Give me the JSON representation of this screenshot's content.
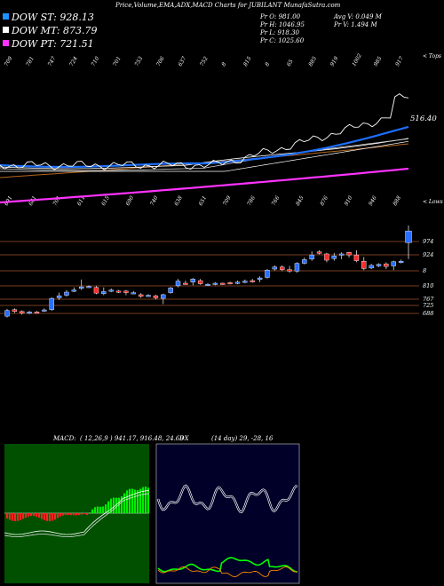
{
  "header": {
    "title": "Price,Volume,EMA,ADX,MACD Charts for JUBILANT MunafaSutra.com",
    "dow_st": "DOW ST: 928.13",
    "dow_mt": "DOW MT: 873.79",
    "dow_pt": "DOW PT: 721.51",
    "pr_o": "Pr  O: 981.00",
    "pr_h": "Pr  H: 1046.95",
    "pr_l": "Pr  L: 918.30",
    "pr_c": "Pr  C: 1025.60",
    "avg_v": "Avg V: 0.049 M",
    "pr_v": "Pr  V: 1.494  M",
    "top_label": "< Tops",
    "low_label": "< Lows",
    "colors": {
      "st": "#1e90ff",
      "mt": "#ffffff",
      "pt": "#ff33ff"
    }
  },
  "ema_panel": {
    "last_value_label": "516.40",
    "top_ticks": [
      "709",
      "781",
      "747",
      "724",
      "710",
      "701",
      "753",
      "706",
      "637",
      "752",
      "8",
      "815",
      "8",
      "65",
      "885",
      "919",
      "1002",
      "985",
      "917"
    ],
    "low_ticks": [
      "691",
      "681",
      "701",
      "611",
      "615",
      "690",
      "740",
      "638",
      "651",
      "709",
      "786",
      "766",
      "845",
      "876",
      "910",
      "946",
      "888"
    ]
  },
  "price_panel": {
    "price_labels": [
      "974",
      "924",
      "8",
      "810",
      "767",
      "725",
      "688"
    ],
    "chart_data": {
      "type": "candlestick",
      "candles": [
        {
          "o": 700,
          "c": 722,
          "h": 728,
          "l": 695
        },
        {
          "o": 725,
          "c": 718,
          "h": 730,
          "l": 712
        },
        {
          "o": 718,
          "c": 712,
          "h": 722,
          "l": 706
        },
        {
          "o": 712,
          "c": 716,
          "h": 720,
          "l": 708
        },
        {
          "o": 716,
          "c": 714,
          "h": 720,
          "l": 710
        },
        {
          "o": 720,
          "c": 724,
          "h": 730,
          "l": 716
        },
        {
          "o": 725,
          "c": 768,
          "h": 772,
          "l": 720
        },
        {
          "o": 770,
          "c": 778,
          "h": 790,
          "l": 762
        },
        {
          "o": 780,
          "c": 792,
          "h": 800,
          "l": 775
        },
        {
          "o": 796,
          "c": 800,
          "h": 810,
          "l": 792
        },
        {
          "o": 806,
          "c": 812,
          "h": 840,
          "l": 800
        },
        {
          "o": 812,
          "c": 814,
          "h": 818,
          "l": 808
        },
        {
          "o": 810,
          "c": 788,
          "h": 816,
          "l": 784
        },
        {
          "o": 786,
          "c": 794,
          "h": 810,
          "l": 780
        },
        {
          "o": 798,
          "c": 800,
          "h": 806,
          "l": 792
        },
        {
          "o": 796,
          "c": 792,
          "h": 800,
          "l": 788
        },
        {
          "o": 796,
          "c": 790,
          "h": 800,
          "l": 780
        },
        {
          "o": 788,
          "c": 790,
          "h": 796,
          "l": 784
        },
        {
          "o": 782,
          "c": 776,
          "h": 788,
          "l": 770
        },
        {
          "o": 778,
          "c": 780,
          "h": 784,
          "l": 774
        },
        {
          "o": 778,
          "c": 770,
          "h": 782,
          "l": 764
        },
        {
          "o": 768,
          "c": 782,
          "h": 786,
          "l": 746
        },
        {
          "o": 790,
          "c": 808,
          "h": 812,
          "l": 786
        },
        {
          "o": 816,
          "c": 834,
          "h": 842,
          "l": 810
        },
        {
          "o": 826,
          "c": 824,
          "h": 836,
          "l": 820
        },
        {
          "o": 830,
          "c": 842,
          "h": 846,
          "l": 818
        },
        {
          "o": 836,
          "c": 824,
          "h": 842,
          "l": 820
        },
        {
          "o": 820,
          "c": 822,
          "h": 826,
          "l": 816
        },
        {
          "o": 822,
          "c": 826,
          "h": 830,
          "l": 818
        },
        {
          "o": 826,
          "c": 824,
          "h": 828,
          "l": 820
        },
        {
          "o": 828,
          "c": 826,
          "h": 832,
          "l": 822
        },
        {
          "o": 826,
          "c": 830,
          "h": 836,
          "l": 822
        },
        {
          "o": 830,
          "c": 834,
          "h": 840,
          "l": 826
        },
        {
          "o": 836,
          "c": 832,
          "h": 842,
          "l": 828
        },
        {
          "o": 840,
          "c": 846,
          "h": 852,
          "l": 830
        },
        {
          "o": 848,
          "c": 876,
          "h": 880,
          "l": 844
        },
        {
          "o": 880,
          "c": 888,
          "h": 894,
          "l": 874
        },
        {
          "o": 888,
          "c": 878,
          "h": 894,
          "l": 872
        },
        {
          "o": 878,
          "c": 872,
          "h": 892,
          "l": 866
        },
        {
          "o": 872,
          "c": 902,
          "h": 906,
          "l": 866
        },
        {
          "o": 902,
          "c": 916,
          "h": 924,
          "l": 898
        },
        {
          "o": 918,
          "c": 934,
          "h": 948,
          "l": 912
        },
        {
          "o": 946,
          "c": 940,
          "h": 952,
          "l": 936
        },
        {
          "o": 938,
          "c": 914,
          "h": 942,
          "l": 906
        },
        {
          "o": 920,
          "c": 930,
          "h": 942,
          "l": 912
        },
        {
          "o": 936,
          "c": 938,
          "h": 944,
          "l": 918
        },
        {
          "o": 944,
          "c": 934,
          "h": 946,
          "l": 924
        },
        {
          "o": 934,
          "c": 912,
          "h": 952,
          "l": 906
        },
        {
          "o": 910,
          "c": 882,
          "h": 926,
          "l": 876
        },
        {
          "o": 884,
          "c": 894,
          "h": 900,
          "l": 880
        },
        {
          "o": 892,
          "c": 898,
          "h": 902,
          "l": 888
        },
        {
          "o": 900,
          "c": 890,
          "h": 906,
          "l": 880
        },
        {
          "o": 892,
          "c": 908,
          "h": 912,
          "l": 876
        },
        {
          "o": 908,
          "c": 910,
          "h": 916,
          "l": 902
        },
        {
          "o": 981,
          "c": 1025.6,
          "h": 1046.95,
          "l": 918.3
        }
      ]
    }
  },
  "macd_panel": {
    "label": "MACD:",
    "values": "( 12,26,9 ) 941.17,  916.48, 24.69",
    "colors": {
      "hist_pos": "#00ee00",
      "hist_neg": "#ff2222",
      "bg": "#005000"
    }
  },
  "adx_panel": {
    "label": "DX",
    "values": "(14 day) 29,  -28,  16",
    "colors": {
      "adx": "#ffffff",
      "plus_di": "#00ff00",
      "minus_di": "#ff8800",
      "bg": "#000028"
    }
  },
  "chart_data": {
    "type": "line",
    "ema_series": [
      {
        "name": "DOW ST",
        "color": "#1e90ff"
      },
      {
        "name": "DOW MT",
        "color": "#ffffff"
      },
      {
        "name": "DOW PT",
        "color": "#ff33ff"
      }
    ]
  }
}
